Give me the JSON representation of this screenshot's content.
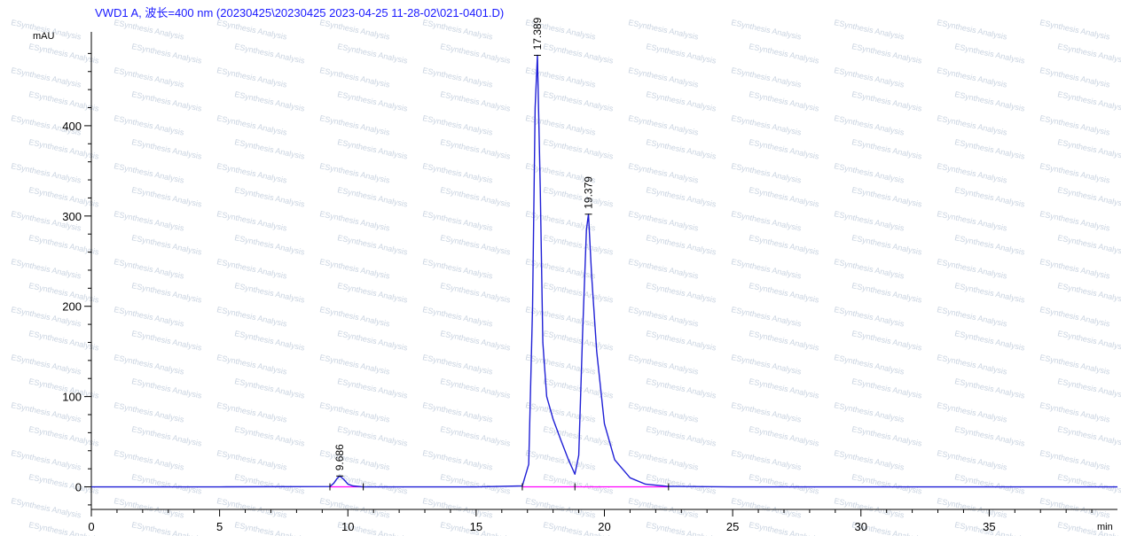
{
  "chart_data": {
    "type": "line",
    "title": "VWD1 A, 波长=400 nm (20230425\\20230425 2023-04-25 11-28-02\\021-0401.D)",
    "ylabel": "mAU",
    "xlabel": "min",
    "xlim": [
      0,
      40
    ],
    "ylim": [
      -25,
      500
    ],
    "x_ticks": [
      0,
      5,
      10,
      15,
      20,
      25,
      30,
      35
    ],
    "y_ticks": [
      0,
      100,
      200,
      300,
      400
    ],
    "grid": false,
    "legend": "none",
    "series": [
      {
        "x": [
          0,
          5,
          9.3,
          9.45,
          9.6,
          9.686,
          9.85,
          10.0,
          10.2,
          10.6,
          15,
          16.8,
          17.05,
          17.2,
          17.3,
          17.389,
          17.5,
          17.6,
          17.75,
          18.0,
          18.3,
          18.6,
          18.85,
          19.0,
          19.15,
          19.3,
          19.379,
          19.5,
          19.7,
          20.0,
          20.4,
          21.0,
          21.6,
          22.5,
          25,
          30,
          35,
          40
        ],
        "y": [
          0,
          0,
          0.3,
          4,
          10,
          12,
          8,
          3,
          1,
          0,
          0,
          1,
          25,
          200,
          420,
          478,
          330,
          160,
          100,
          75,
          52,
          30,
          14,
          35,
          170,
          285,
          302,
          235,
          150,
          70,
          30,
          10,
          3,
          0.5,
          0,
          0,
          0,
          0
        ]
      }
    ],
    "baselines": [
      {
        "x": [
          9.3,
          10.6
        ],
        "y": [
          0,
          0
        ]
      },
      {
        "x": [
          16.8,
          18.85
        ],
        "y": [
          0,
          0
        ]
      },
      {
        "x": [
          18.85,
          22.5
        ],
        "y": [
          0,
          0
        ]
      }
    ],
    "peak_labels": [
      {
        "text": "9.686",
        "x": 9.686,
        "y": 12
      },
      {
        "text": "17.389",
        "x": 17.389,
        "y": 478
      },
      {
        "text": "19.379",
        "x": 19.379,
        "y": 302
      }
    ],
    "watermark_text": "ESynthesis Analysis",
    "colors": {
      "trace": "#1f1fd6",
      "baseline": "#ff00ff",
      "title": "#1a1aff",
      "axis": "#000000",
      "watermark": "#c9d3e0"
    }
  }
}
